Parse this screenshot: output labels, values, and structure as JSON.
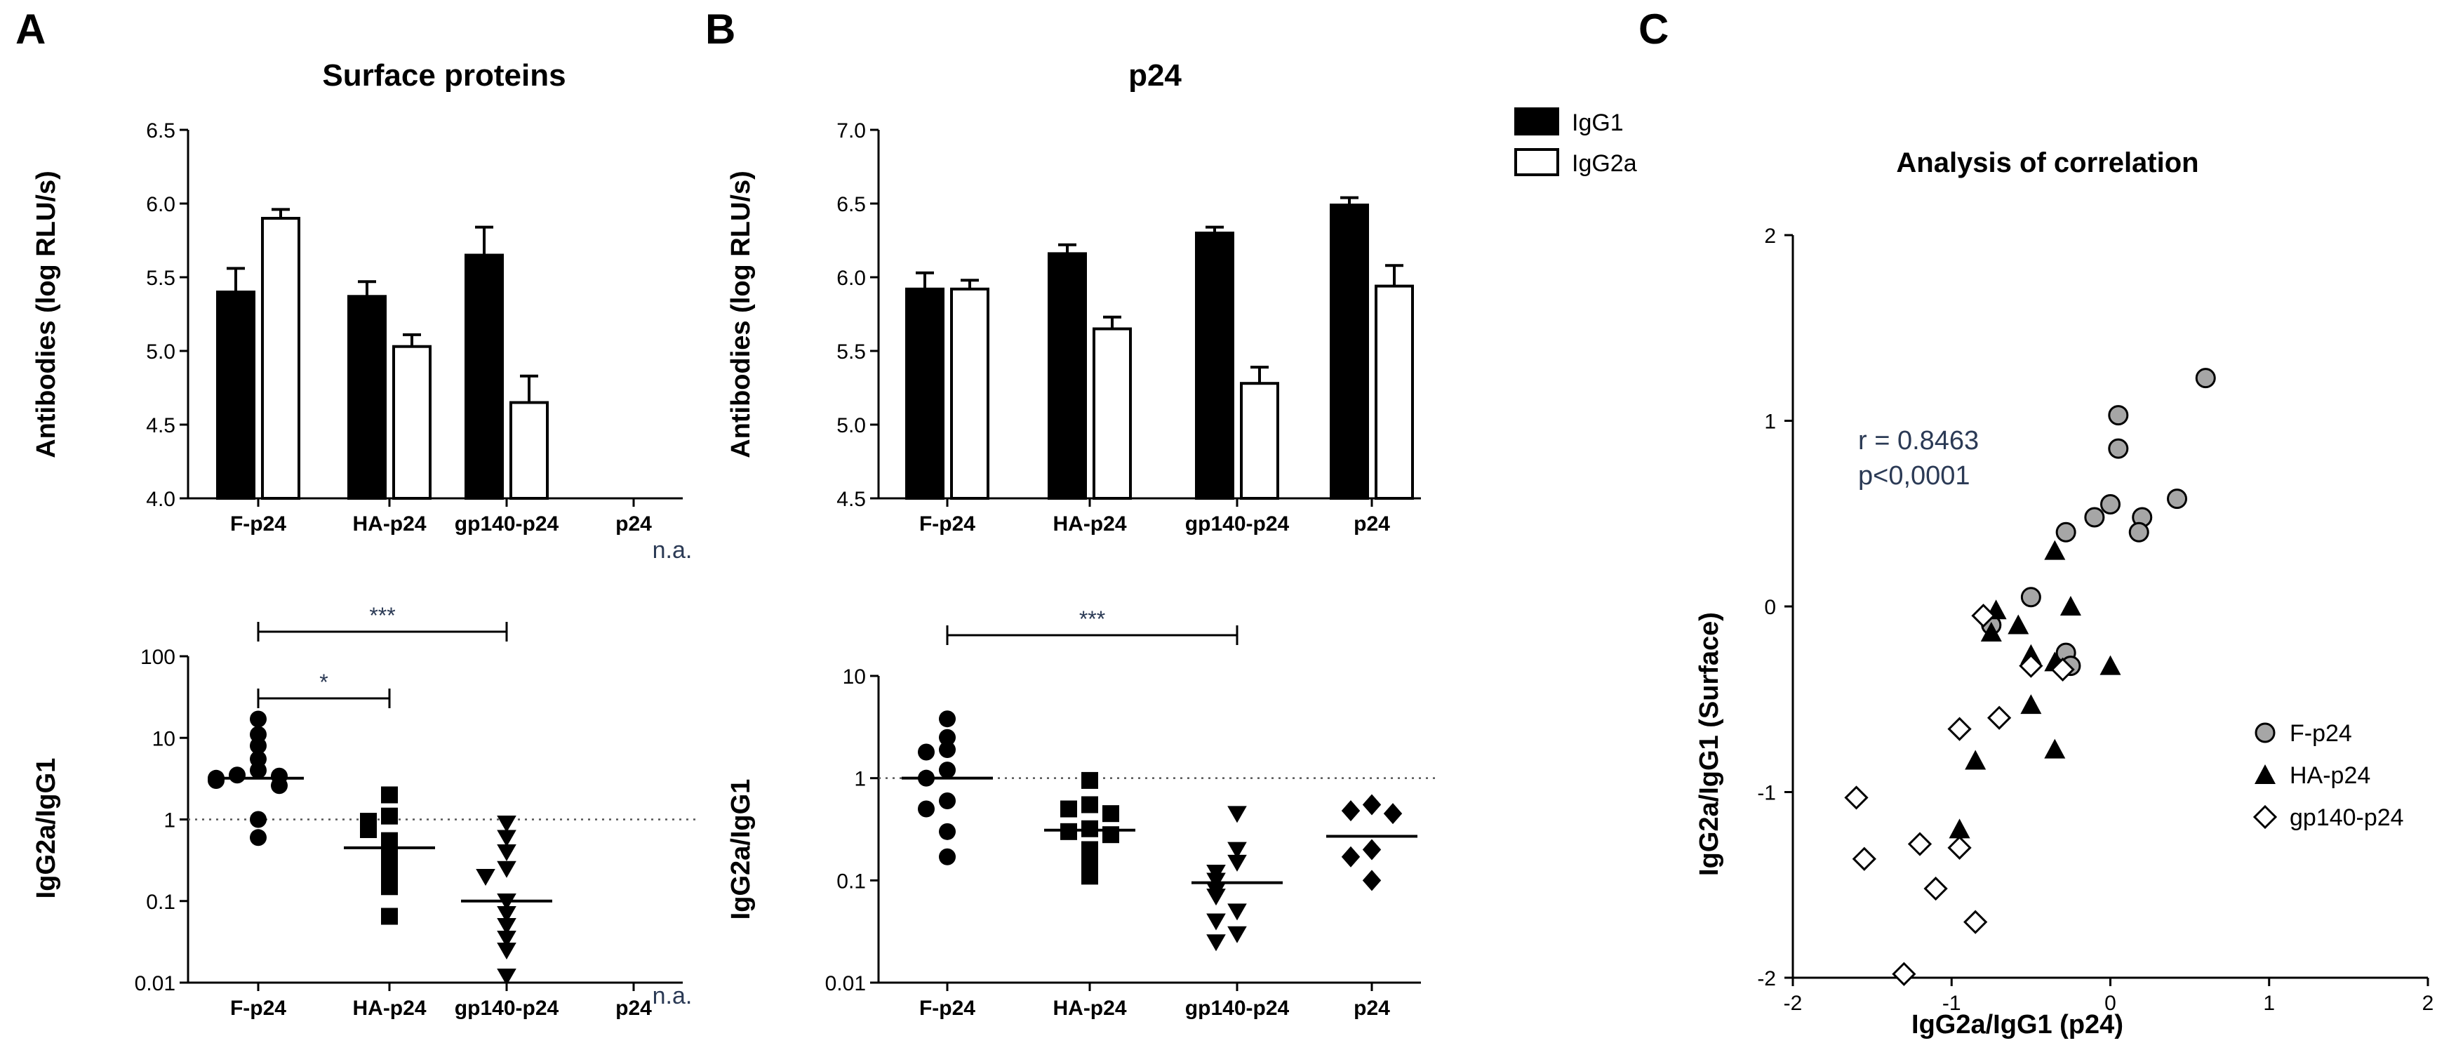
{
  "figure": {
    "panel_labels": {
      "a": "A",
      "b": "B",
      "c": "C"
    },
    "legend": {
      "igg1": "IgG1",
      "igg2a": "IgG2a"
    },
    "colors": {
      "black": "#000000",
      "white": "#ffffff",
      "grey": "#a6a6a6",
      "annotation": "#2b3a55"
    }
  },
  "chart_data": [
    {
      "id": "A_top",
      "type": "bar",
      "title": "Surface proteins",
      "ylabel": "Antibodies (log RLU/s)",
      "ylim": [
        4.0,
        6.5
      ],
      "yticks": [
        "4.0",
        "4.5",
        "5.0",
        "5.5",
        "6.0",
        "6.5"
      ],
      "categories": [
        "F-p24",
        "HA-p24",
        "gp140-p24",
        "p24"
      ],
      "series": [
        {
          "name": "IgG1",
          "values": [
            5.4,
            5.37,
            5.65,
            null
          ],
          "errors": [
            0.16,
            0.1,
            0.19,
            null
          ]
        },
        {
          "name": "IgG2a",
          "values": [
            5.9,
            5.03,
            4.65,
            null
          ],
          "errors": [
            0.06,
            0.08,
            0.18,
            null
          ]
        }
      ],
      "annotations": [
        "n.a."
      ]
    },
    {
      "id": "B_top",
      "type": "bar",
      "title": "p24",
      "ylabel": "Antibodies (log RLU/s)",
      "ylim": [
        4.5,
        7.0
      ],
      "yticks": [
        "4.5",
        "5.0",
        "5.5",
        "6.0",
        "6.5",
        "7.0"
      ],
      "categories": [
        "F-p24",
        "HA-p24",
        "gp140-p24",
        "p24"
      ],
      "series": [
        {
          "name": "IgG1",
          "values": [
            5.92,
            6.16,
            6.3,
            6.49
          ],
          "errors": [
            0.11,
            0.06,
            0.04,
            0.05
          ]
        },
        {
          "name": "IgG2a",
          "values": [
            5.92,
            5.65,
            5.28,
            5.94
          ],
          "errors": [
            0.06,
            0.08,
            0.11,
            0.14
          ]
        }
      ]
    },
    {
      "id": "A_bottom",
      "type": "scatter",
      "ylabel": "IgG2a/IgG1",
      "yscale": "log",
      "ylim": [
        0.01,
        100
      ],
      "yticks": [
        "0.01",
        "0.1",
        "1",
        "10",
        "100"
      ],
      "categories": [
        "F-p24",
        "HA-p24",
        "gp140-p24",
        "p24"
      ],
      "reference_line": 1,
      "groups": [
        {
          "name": "F-p24",
          "marker": "circle",
          "median": 3.2,
          "points": [
            17,
            11,
            8,
            5.5,
            4,
            3.5,
            3.4,
            3.2,
            3.0,
            2.6,
            1.0,
            0.6
          ]
        },
        {
          "name": "HA-p24",
          "marker": "square",
          "median": 0.45,
          "points": [
            2.0,
            1.1,
            0.95,
            0.85,
            0.75,
            0.55,
            0.4,
            0.3,
            0.22,
            0.15,
            0.065
          ]
        },
        {
          "name": "gp140-p24",
          "marker": "triangle-down",
          "median": 0.1,
          "points": [
            0.9,
            0.6,
            0.4,
            0.25,
            0.2,
            0.1,
            0.07,
            0.05,
            0.035,
            0.025,
            0.012
          ]
        },
        {
          "name": "p24",
          "marker": "none",
          "median": null,
          "points": []
        }
      ],
      "significance": [
        {
          "from": "F-p24",
          "to": "gp140-p24",
          "label": "***"
        },
        {
          "from": "F-p24",
          "to": "HA-p24",
          "label": "*"
        }
      ],
      "annotations": [
        "n.a."
      ]
    },
    {
      "id": "B_bottom",
      "type": "scatter",
      "ylabel": "IgG2a/IgG1",
      "yscale": "log",
      "ylim": [
        0.01,
        10
      ],
      "yticks": [
        "0.01",
        "0.1",
        "1",
        "10"
      ],
      "categories": [
        "F-p24",
        "HA-p24",
        "gp140-p24",
        "p24"
      ],
      "reference_line": 1,
      "groups": [
        {
          "name": "F-p24",
          "marker": "circle",
          "median": 1.0,
          "points": [
            3.8,
            2.5,
            1.9,
            1.8,
            1.2,
            1.0,
            0.6,
            0.5,
            0.3,
            0.17
          ]
        },
        {
          "name": "HA-p24",
          "marker": "square",
          "median": 0.31,
          "points": [
            0.95,
            0.55,
            0.5,
            0.45,
            0.32,
            0.3,
            0.28,
            0.2,
            0.15,
            0.11
          ]
        },
        {
          "name": "gp140-p24",
          "marker": "triangle-down",
          "median": 0.095,
          "points": [
            0.45,
            0.2,
            0.15,
            0.12,
            0.1,
            0.08,
            0.07,
            0.05,
            0.04,
            0.03,
            0.025
          ]
        },
        {
          "name": "p24",
          "marker": "diamond",
          "median": 0.27,
          "points": [
            0.55,
            0.48,
            0.45,
            0.2,
            0.17,
            0.1
          ]
        }
      ],
      "significance": [
        {
          "from": "F-p24",
          "to": "gp140-p24",
          "label": "***"
        }
      ]
    },
    {
      "id": "C",
      "type": "scatter",
      "title": "Analysis of correlation",
      "xlabel": "IgG2a/IgG1 (p24)",
      "ylabel": "IgG2a/IgG1 (Surface)",
      "xlim": [
        -2,
        2
      ],
      "ylim": [
        -2,
        2
      ],
      "xticks": [
        "-2",
        "-1",
        "0",
        "1",
        "2"
      ],
      "yticks": [
        "-2",
        "-1",
        "0",
        "1",
        "2"
      ],
      "stats": {
        "r": "r = 0.8463",
        "p": "p<0,0001"
      },
      "series": [
        {
          "name": "F-p24",
          "marker": "circle-grey",
          "points": [
            [
              0.6,
              1.23
            ],
            [
              0.05,
              1.03
            ],
            [
              0.05,
              0.85
            ],
            [
              0.0,
              0.55
            ],
            [
              -0.1,
              0.48
            ],
            [
              0.2,
              0.48
            ],
            [
              0.18,
              0.4
            ],
            [
              0.42,
              0.58
            ],
            [
              -0.28,
              0.4
            ],
            [
              -0.5,
              0.05
            ],
            [
              -0.28,
              -0.25
            ],
            [
              -0.25,
              -0.32
            ],
            [
              -0.75,
              -0.1
            ]
          ]
        },
        {
          "name": "HA-p24",
          "marker": "triangle-up",
          "points": [
            [
              -0.35,
              0.3
            ],
            [
              -0.72,
              -0.02
            ],
            [
              -0.75,
              -0.14
            ],
            [
              -0.58,
              -0.1
            ],
            [
              -0.25,
              0.0
            ],
            [
              -0.5,
              -0.26
            ],
            [
              -0.35,
              -0.3
            ],
            [
              0.0,
              -0.32
            ],
            [
              -0.5,
              -0.53
            ],
            [
              -0.35,
              -0.77
            ],
            [
              -0.85,
              -0.83
            ],
            [
              -0.95,
              -1.2
            ]
          ]
        },
        {
          "name": "gp140-p24",
          "marker": "diamond-open",
          "points": [
            [
              -0.8,
              -0.05
            ],
            [
              -0.5,
              -0.32
            ],
            [
              -0.3,
              -0.34
            ],
            [
              -0.7,
              -0.6
            ],
            [
              -0.95,
              -0.66
            ],
            [
              -1.6,
              -1.03
            ],
            [
              -1.55,
              -1.36
            ],
            [
              -1.2,
              -1.28
            ],
            [
              -0.95,
              -1.3
            ],
            [
              -1.1,
              -1.52
            ],
            [
              -0.85,
              -1.7
            ],
            [
              -1.3,
              -1.98
            ]
          ]
        }
      ]
    }
  ]
}
